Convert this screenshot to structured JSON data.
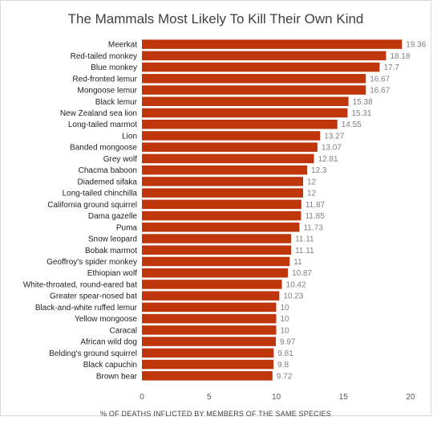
{
  "chart_data": {
    "type": "bar",
    "orientation": "horizontal",
    "title": "The Mammals Most Likely To Kill Their Own Kind",
    "xlabel": "% OF DEATHS INFLICTED BY MEMBERS OF THE SAME SPECIES",
    "ylabel": "",
    "xlim": [
      0,
      20
    ],
    "xticks": [
      "0",
      "5",
      "10",
      "15",
      "20"
    ],
    "grid": false,
    "bar_color": "#c0360b",
    "categories": [
      "Meerkat",
      "Red-tailed monkey",
      "Blue monkey",
      "Red-fronted lemur",
      "Mongoose lemur",
      "Black lemur",
      "New Zealand sea lion",
      "Long-tailed marmot",
      "Lion",
      "Banded mongoose",
      "Grey wolf",
      "Chacma baboon",
      "Diademed sifaka",
      "Long-tailed chinchilla",
      "California ground squirrel",
      "Dama gazelle",
      "Puma",
      "Snow leopard",
      "Bobak marmot",
      "Geoffroy's spider monkey",
      "Ethiopian wolf",
      "White-throated, round-eared bat",
      "Greater spear-nosed bat",
      "Black-and-white ruffed lemur",
      "Yellow mongoose",
      "Caracal",
      "African wild dog",
      "Belding's ground squirrel",
      "Black capuchin",
      "Brown bear"
    ],
    "values": [
      19.36,
      18.18,
      17.7,
      16.67,
      16.67,
      15.38,
      15.31,
      14.55,
      13.27,
      13.07,
      12.81,
      12.3,
      12,
      12,
      11.87,
      11.85,
      11.73,
      11.11,
      11.11,
      11,
      10.87,
      10.42,
      10.23,
      10,
      10,
      10,
      9.97,
      9.81,
      9.8,
      9.72
    ],
    "value_labels": [
      "19.36",
      "18.18",
      "17.7",
      "16.67",
      "16.67",
      "15.38",
      "15.31",
      "14.55",
      "13.27",
      "13.07",
      "12.81",
      "12.3",
      "12",
      "12",
      "11.87",
      "11.85",
      "11.73",
      "11.11",
      "11.11",
      "11",
      "10.87",
      "10.42",
      "10.23",
      "10",
      "10",
      "10",
      "9.97",
      "9.81",
      "9.8",
      "9.72"
    ]
  }
}
